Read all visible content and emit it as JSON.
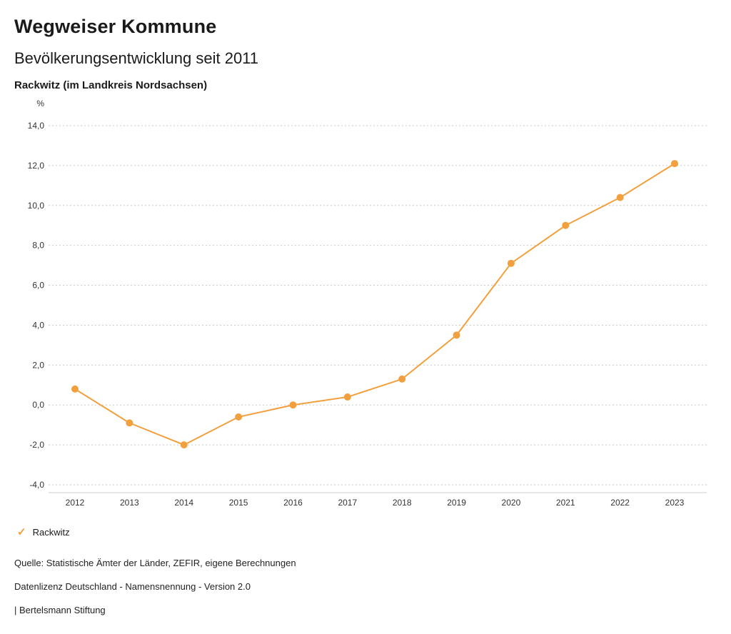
{
  "header": {
    "title": "Wegweiser Kommune",
    "subtitle": "Bevölkerungsentwicklung seit 2011",
    "region": "Rackwitz (im Landkreis Nordsachsen)"
  },
  "chart_data": {
    "type": "line",
    "title": "Bevölkerungsentwicklung seit 2011 — Rackwitz (im Landkreis Nordsachsen)",
    "unit_label": "%",
    "x": [
      "2012",
      "2013",
      "2014",
      "2015",
      "2016",
      "2017",
      "2018",
      "2019",
      "2020",
      "2021",
      "2022",
      "2023"
    ],
    "series": [
      {
        "name": "Rackwitz",
        "values": [
          0.8,
          -0.9,
          -2.0,
          -0.6,
          0.0,
          0.4,
          1.3,
          3.5,
          7.1,
          9.0,
          10.4,
          12.1
        ],
        "color": "#F2A03E"
      }
    ],
    "ylim": [
      -4,
      14
    ],
    "ytick_step": 2,
    "decimal_separator": ",",
    "grid": true,
    "legend_position": "bottom-left"
  },
  "legend": {
    "icon": "check-icon",
    "label": "Rackwitz",
    "color": "#F2A03E"
  },
  "footer": {
    "source": "Quelle: Statistische Ämter der Länder, ZEFIR, eigene Berechnungen",
    "license": "Datenlizenz Deutschland - Namensnennung - Version 2.0",
    "attribution": "| Bertelsmann Stiftung"
  }
}
